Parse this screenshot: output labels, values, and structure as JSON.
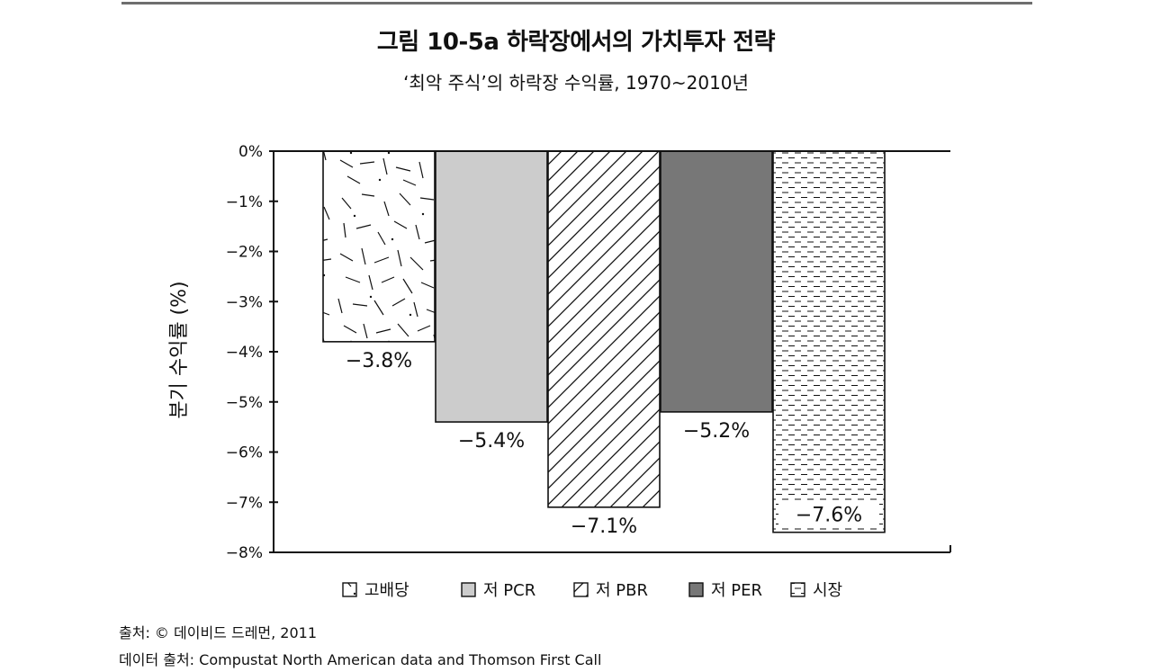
{
  "header": {
    "title": "그림 10-5a  하락장에서의 가치투자 전략",
    "subtitle": "‘최악 주식’의 하락장 수익률, 1970~2010년"
  },
  "footer": {
    "source_line": "출처: © 데이비드 드레먼, 2011",
    "data_line": "데이터 출처: Compustat North American data and Thomson First Call"
  },
  "chart_data": {
    "type": "bar",
    "title": "그림 10-5a  하락장에서의 가치투자 전략",
    "subtitle": "‘최악 주식’의 하락장 수익률, 1970~2010년",
    "xlabel": "",
    "ylabel": "분기 수익률 (%)",
    "ylim": [
      -8,
      0
    ],
    "yticks": [
      "0%",
      "−1%",
      "−2%",
      "−3%",
      "−4%",
      "−5%",
      "−6%",
      "−7%",
      "−8%"
    ],
    "categories": [
      "고배당",
      "저 PCR",
      "저 PBR",
      "저 PER",
      "시장"
    ],
    "values": [
      -3.8,
      -5.4,
      -7.1,
      -5.2,
      -7.6
    ],
    "data_labels": [
      "−3.8%",
      "−5.4%",
      "−7.1%",
      "−5.2%",
      "−7.6%"
    ],
    "legend_position": "bottom",
    "grid": false,
    "patterns": [
      "random-dash",
      "light-gray",
      "diagonal-hatch",
      "dark-gray",
      "horizontal-dash"
    ],
    "colors": {
      "light_fill": "#cccccc",
      "dark_fill": "#777777",
      "outline": "#111111"
    }
  }
}
